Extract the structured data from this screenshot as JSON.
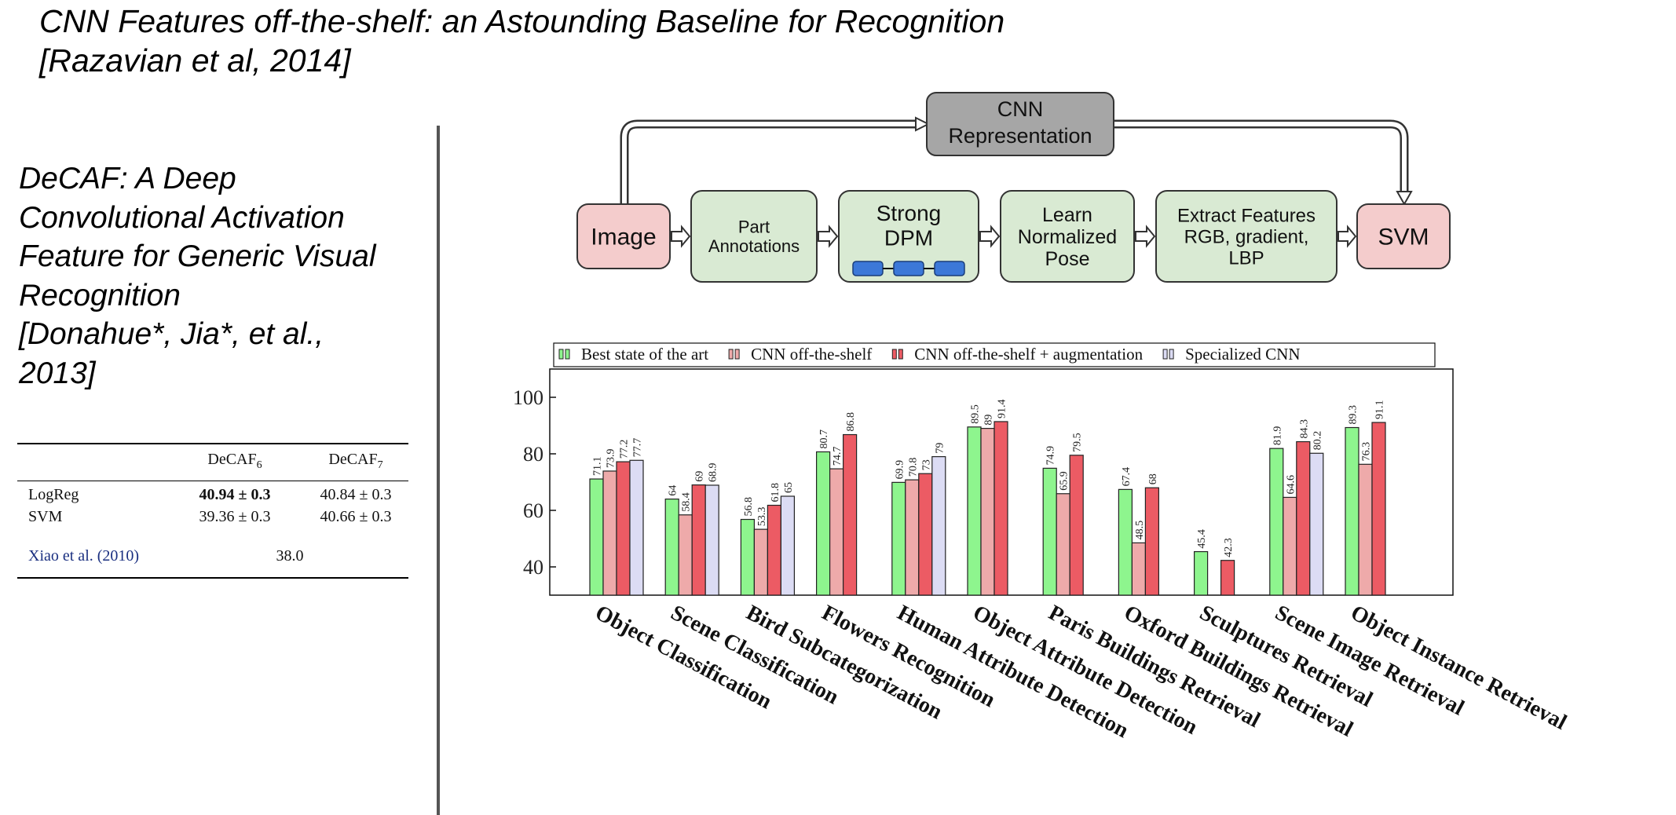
{
  "slide": {
    "title_line1": "CNN Features off-the-shelf: an Astounding Baseline for Recognition",
    "title_line2": "[Razavian et al, 2014]"
  },
  "left": {
    "title_lines": [
      "DeCAF: A Deep",
      "Convolutional Activation",
      "Feature for Generic Visual",
      "Recognition",
      "[Donahue*, Jia*, et al.,",
      "2013]"
    ]
  },
  "results_table": {
    "headers": {
      "col1_base": "DeCAF",
      "col1_sub": "6",
      "col2_base": "DeCAF",
      "col2_sub": "7"
    },
    "rows": [
      {
        "method": "LogReg",
        "decaf6": "40.94 ± 0.3",
        "decaf7": "40.84 ± 0.3"
      },
      {
        "method": "SVM",
        "decaf6": "39.36 ± 0.3",
        "decaf7": "40.66 ± 0.3"
      }
    ],
    "baseline": {
      "method": "Xiao et al. (2010)",
      "value": "38.0"
    }
  },
  "pipeline": {
    "cnn_box": [
      "CNN",
      "Representation"
    ],
    "steps": [
      {
        "lines": [
          "Image"
        ],
        "kind": "pink"
      },
      {
        "lines": [
          "Part",
          "Annotations"
        ],
        "kind": "green"
      },
      {
        "lines": [
          "Strong",
          "DPM"
        ],
        "kind": "green"
      },
      {
        "lines": [
          "Learn",
          "Normalized",
          "Pose"
        ],
        "kind": "green"
      },
      {
        "lines": [
          "Extract Features",
          "RGB, gradient,",
          "LBP"
        ],
        "kind": "green"
      },
      {
        "lines": [
          "SVM"
        ],
        "kind": "pink"
      }
    ],
    "colors": {
      "pink": "#f4cccc",
      "green": "#d9ead3",
      "gray": "#a6a6a6",
      "dpm_blue": "#3c78d8"
    }
  },
  "chart_data": {
    "type": "bar",
    "categories": [
      "Object Classification",
      "Scene Classification",
      "Bird Subcategorization",
      "Flowers Recognition",
      "Human Attribute Detection",
      "Object Attribute Detection",
      "Paris Buildings Retrieval",
      "Oxford Buildings Retrieval",
      "Sculptures Retrieval",
      "Scene Image Retrieval",
      "Object Instance Retrieval"
    ],
    "series": [
      {
        "name": "Best state of the art",
        "color": "#8ef58e",
        "values": [
          71.1,
          64,
          56.8,
          80.7,
          69.9,
          89.5,
          74.9,
          67.4,
          45.4,
          81.9,
          89.3
        ]
      },
      {
        "name": "CNN off-the-shelf",
        "color": "#eeaaaa",
        "values": [
          73.9,
          58.4,
          53.3,
          74.7,
          70.8,
          89,
          65.9,
          48.5,
          null,
          64.6,
          76.3
        ]
      },
      {
        "name": "CNN off-the-shelf + augmentation",
        "color": "#ec5b64",
        "values": [
          77.2,
          69,
          61.8,
          86.8,
          73,
          91.4,
          79.5,
          68,
          42.3,
          84.3,
          91.1
        ]
      },
      {
        "name": "Specialized CNN",
        "color": "#dcdcf4",
        "values": [
          77.7,
          68.9,
          65,
          null,
          79,
          null,
          null,
          null,
          null,
          80.2,
          null
        ]
      }
    ],
    "data_labels": [
      [
        "71.1",
        "64",
        "56.8",
        "80.7",
        "69.9",
        "89.5",
        "74.9",
        "67.4",
        "45.4",
        "81.9",
        "89.3"
      ],
      [
        "73.9",
        "58.4",
        "53.3",
        "74.7",
        "70.8",
        "89",
        "65.9",
        "48.5",
        "",
        "64.6",
        "76.3"
      ],
      [
        "77.2",
        "69",
        "61.8",
        "86.8",
        "73",
        "91.4",
        "79.5",
        "68",
        "42.3",
        "84.3",
        "91.1"
      ],
      [
        "77.7",
        "68.9",
        "65",
        "",
        "79",
        "",
        "",
        "",
        "",
        "80.2",
        ""
      ]
    ],
    "yticks": [
      "40",
      "60",
      "80",
      "100"
    ],
    "ylim": [
      30,
      110
    ],
    "grid": false,
    "legend": "top"
  }
}
